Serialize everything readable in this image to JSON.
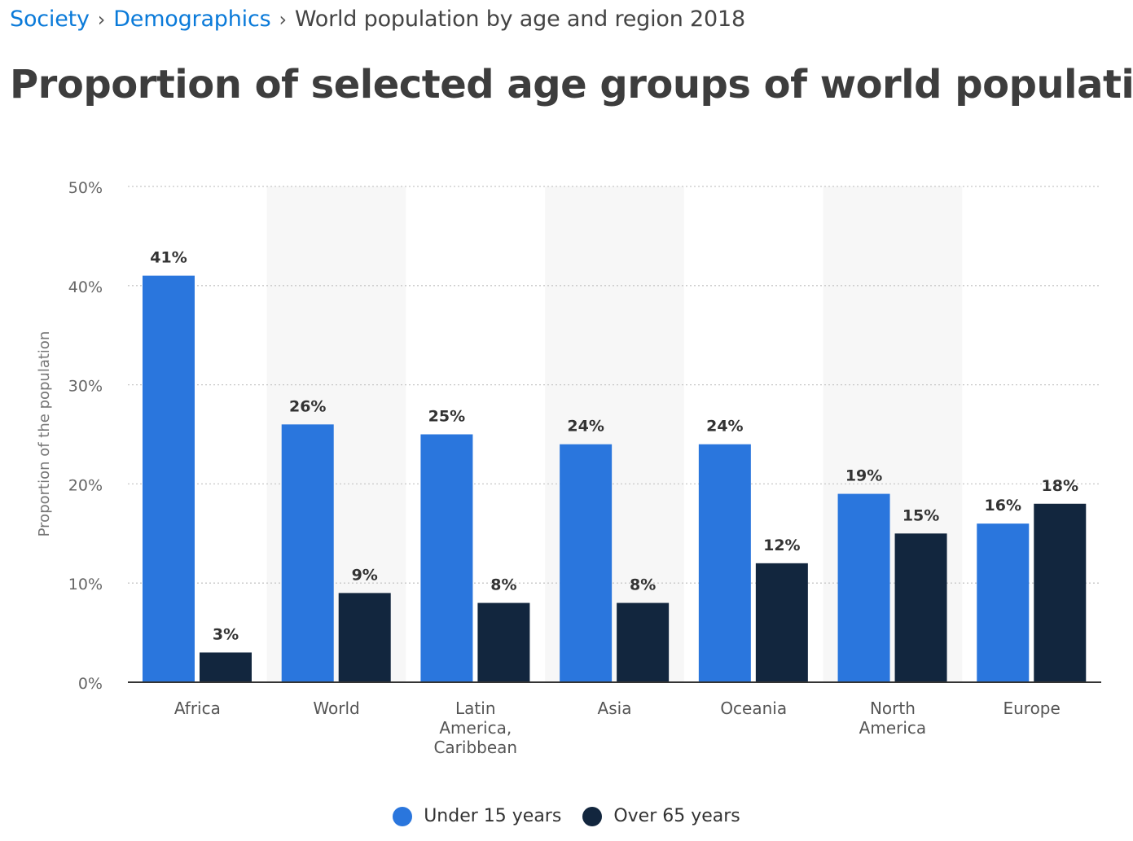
{
  "breadcrumb": {
    "items": [
      "Society",
      "Demographics"
    ],
    "separator": "›",
    "current": "World population by age and region 2018"
  },
  "title": "Proportion of selected age groups of world population",
  "colors": {
    "under15": "#2a76dd",
    "over65": "#12263e",
    "band": "#f7f7f7",
    "grid": "#c8c8c8",
    "axis": "#333333",
    "tick_text": "#666666",
    "label_text": "#333333"
  },
  "chart_data": {
    "type": "bar",
    "title": "Proportion of selected age groups of world population",
    "xlabel": "",
    "ylabel": "Proportion of the population",
    "ylim": [
      0,
      50
    ],
    "yticks": [
      0,
      10,
      20,
      30,
      40,
      50
    ],
    "ytick_labels": [
      "0%",
      "10%",
      "20%",
      "30%",
      "40%",
      "50%"
    ],
    "grid": true,
    "legend_position": "bottom-center",
    "categories": [
      [
        "Africa"
      ],
      [
        "World"
      ],
      [
        "Latin",
        "America,",
        "Caribbean"
      ],
      [
        "Asia"
      ],
      [
        "Oceania"
      ],
      [
        "North",
        "America"
      ],
      [
        "Europe"
      ]
    ],
    "series": [
      {
        "name": "Under 15 years",
        "values": [
          41,
          26,
          25,
          24,
          24,
          19,
          16
        ],
        "labels": [
          "41%",
          "26%",
          "25%",
          "24%",
          "24%",
          "19%",
          "16%"
        ]
      },
      {
        "name": "Over 65 years",
        "values": [
          3,
          9,
          8,
          8,
          12,
          15,
          18
        ],
        "labels": [
          "3%",
          "9%",
          "8%",
          "8%",
          "12%",
          "15%",
          "18%"
        ]
      }
    ]
  }
}
